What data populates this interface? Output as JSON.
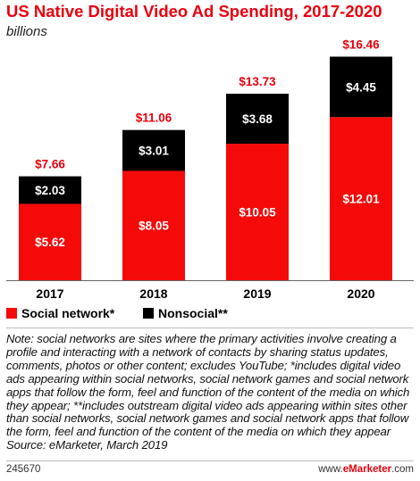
{
  "chart_data": {
    "type": "bar",
    "stacked": true,
    "title": "US Native Digital Video Ad Spending, 2017-2020",
    "subtitle": "billions",
    "categories": [
      "2017",
      "2018",
      "2019",
      "2020"
    ],
    "series": [
      {
        "name": "Social network*",
        "color": "#f50a0a",
        "values": [
          5.62,
          8.05,
          10.05,
          12.01
        ],
        "labels": [
          "$5.62",
          "$8.05",
          "$10.05",
          "$12.01"
        ]
      },
      {
        "name": "Nonsocial**",
        "color": "#000000",
        "values": [
          2.03,
          3.01,
          3.68,
          4.45
        ],
        "labels": [
          "$2.03",
          "$3.01",
          "$3.68",
          "$4.45"
        ]
      }
    ],
    "totals": [
      7.66,
      11.06,
      13.73,
      16.46
    ],
    "total_labels": [
      "$7.66",
      "$11.06",
      "$13.73",
      "$16.46"
    ],
    "legend_position": "bottom-left",
    "grid": false
  },
  "note": "Note: social networks are sites where the primary activities involve creating a profile and interacting with a network of contacts by sharing status updates, comments, photos or other content; excludes YouTube; *includes digital video ads appearing within social networks, social network games and social network apps that follow the form, feel and function of the content of the media on which they appear; **includes outstream digital video ads appearing within sites other than social networks, social network games and social network apps that follow the form, feel and function of the content of the media on which they appear",
  "source": "Source: eMarketer, March 2019",
  "footer": {
    "id": "245670",
    "brand_prefix": "www.",
    "brand_name": "eMarketer",
    "brand_suffix": ".com"
  },
  "colors": {
    "accent": "#e8000d",
    "social": "#f50a0a",
    "nonsocial": "#000000"
  }
}
